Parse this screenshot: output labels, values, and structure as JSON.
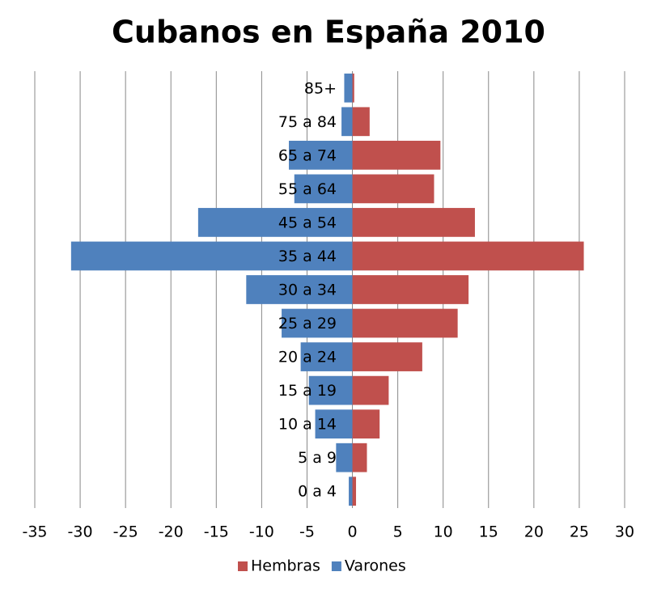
{
  "chart_data": {
    "type": "pyramid",
    "title": "Cubanos en España 2010",
    "categories": [
      "0 a 4",
      "5 a 9",
      "10 a 14",
      "15 a 19",
      "20 a 24",
      "25 a 29",
      "30 a 34",
      "35 a 44",
      "45 a 54",
      "55 a 64",
      "65 a 74",
      "75 a 84",
      "85+"
    ],
    "series": [
      {
        "name": "Hembras",
        "color": "#c0504d",
        "values": [
          0.4,
          1.6,
          3.0,
          4.0,
          7.7,
          11.6,
          12.8,
          25.5,
          13.5,
          9.0,
          9.7,
          1.9,
          0.2
        ]
      },
      {
        "name": "Varones",
        "color": "#4f81bd",
        "values": [
          -0.4,
          -1.8,
          -4.1,
          -4.8,
          -5.7,
          -7.8,
          -11.7,
          -31.0,
          -17.0,
          -6.4,
          -7.0,
          -1.2,
          -0.9
        ]
      }
    ],
    "xlim": [
      -35,
      30
    ],
    "xticks": [
      -35,
      -30,
      -25,
      -20,
      -15,
      -10,
      -5,
      0,
      5,
      10,
      15,
      20,
      25,
      30
    ],
    "grid": true,
    "legend": "bottom"
  }
}
